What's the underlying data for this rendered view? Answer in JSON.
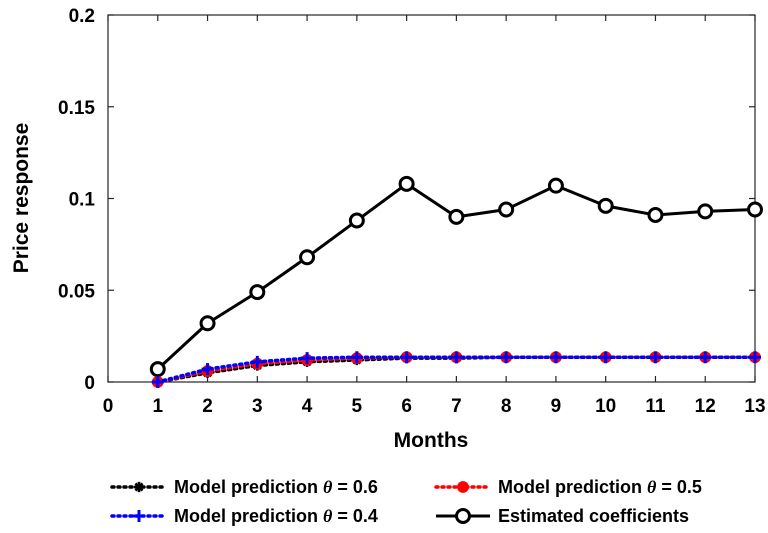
{
  "chart_data": {
    "type": "line",
    "xlabel": "Months",
    "ylabel": "Price response",
    "xlim": [
      0,
      13
    ],
    "ylim": [
      0,
      0.2
    ],
    "x_ticks": [
      "0",
      "1",
      "2",
      "3",
      "4",
      "5",
      "6",
      "7",
      "8",
      "9",
      "10",
      "11",
      "12",
      "13"
    ],
    "y_ticks": [
      "0",
      "0.05",
      "0.1",
      "0.15",
      "0.2"
    ],
    "grid": false,
    "legend_position": "bottom",
    "x": [
      1,
      2,
      3,
      4,
      5,
      6,
      7,
      8,
      9,
      10,
      11,
      12,
      13
    ],
    "series": [
      {
        "name": "Model prediction θ = 0.6",
        "label_prefix": "Model prediction ",
        "label_symbol": "θ",
        "label_suffix": " = 0.6",
        "color": "#000000",
        "line_style": "dotted",
        "marker": "asterisk",
        "values": [
          0.0,
          0.005,
          0.009,
          0.011,
          0.012,
          0.013,
          0.013,
          0.0135,
          0.0135,
          0.0135,
          0.0135,
          0.0135,
          0.0135
        ]
      },
      {
        "name": "Model prediction θ = 0.5",
        "label_prefix": "Model prediction ",
        "label_symbol": "θ",
        "label_suffix": " = 0.5",
        "color": "#ff0000",
        "line_style": "dotted",
        "marker": "filled-circle",
        "values": [
          0.0,
          0.006,
          0.01,
          0.012,
          0.013,
          0.0135,
          0.0135,
          0.0135,
          0.0135,
          0.0135,
          0.0135,
          0.0135,
          0.0135
        ]
      },
      {
        "name": "Model prediction θ = 0.4",
        "label_prefix": "Model prediction ",
        "label_symbol": "θ",
        "label_suffix": " = 0.4",
        "color": "#0000ff",
        "line_style": "dotted",
        "marker": "plus",
        "values": [
          0.0,
          0.007,
          0.011,
          0.013,
          0.0135,
          0.0135,
          0.0135,
          0.0135,
          0.0135,
          0.0135,
          0.0135,
          0.0135,
          0.0135
        ]
      },
      {
        "name": "Estimated coefficients",
        "label_prefix": "Estimated coefficients",
        "label_symbol": "",
        "label_suffix": "",
        "color": "#000000",
        "line_style": "solid",
        "marker": "open-circle",
        "values": [
          0.007,
          0.032,
          0.049,
          0.068,
          0.088,
          0.108,
          0.09,
          0.094,
          0.107,
          0.096,
          0.091,
          0.093,
          0.094
        ]
      }
    ]
  }
}
